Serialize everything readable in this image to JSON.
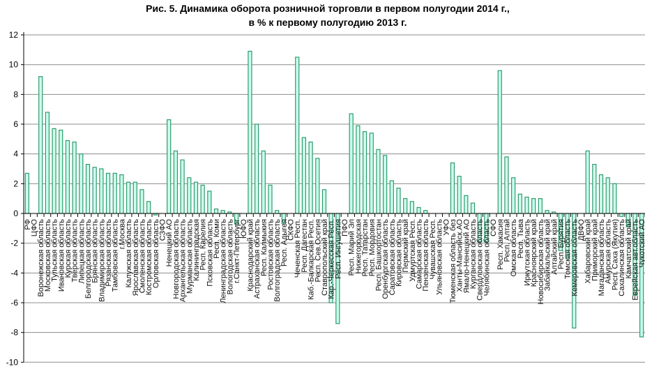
{
  "chart_data": {
    "type": "bar",
    "title": "Рис. 5. Динамика оборота розничной торговли в первом полугодии 2014 г.,",
    "subtitle": "в % к первому полугодию 2013 г.",
    "xlabel": "",
    "ylabel": "",
    "ylim": [
      -10,
      12
    ],
    "yticks": [
      12,
      10,
      8,
      6,
      4,
      2,
      0,
      -2,
      -4,
      -6,
      -8,
      -10
    ],
    "grid": true,
    "colors": {
      "bar_fill": "#ccfff0",
      "bar_stroke": "#2e9a6a",
      "grid": "#8c8c8c"
    },
    "categories": [
      "РФ",
      "ЦФО",
      "Воронежская область",
      "Московская область",
      "Тульская область",
      "Ивановская область",
      "Курская область",
      "Тверская область",
      "Липецкая область",
      "Белгородская область",
      "Брянская область",
      "Владимирская область",
      "Рязанская область",
      "Тамбовская область",
      "г.Москва",
      "Калужская область",
      "Ярославская область",
      "Смоленская область",
      "Костромская область",
      "Орловская область",
      "СЗФО",
      "Ненецкий АО",
      "Новгородская область",
      "Архангельская область",
      "Мурманская область",
      "Калининградская",
      "Респ. Карелия",
      "Псковская область",
      "Респ. Коми",
      "Ленинградская область",
      "Вологодская область",
      "г.Санкт-Петербург",
      "ЮФО",
      "Краснодарский край",
      "Астраханская область",
      "Респ. Калмыкия",
      "Ростовская область",
      "Волгоградская область",
      "Респ. Адыгея",
      "СКФО",
      "Чеченская Респ.",
      "Респ. Дагестан",
      "Каб.-Балкарская Респ.",
      "Респ. Сев.Осетия",
      "Ставропольский край",
      "Кар.-Черкесская Респ.",
      "Респ. Ингушетия",
      "ПФО",
      "Респ. Марий Эл",
      "Нижегородская",
      "Респ. Татарстан",
      "Респ. Мордовия",
      "Респ. Башкортостан",
      "Оренбургская область",
      "Саратовская область",
      "Кировская область",
      "Пермский край",
      "Удмуртская Респ.",
      "Самарская область",
      "Пензенская область",
      "Чувашская Респ.",
      "Ульяновская область",
      "УФО",
      "Тюменская область без",
      "Ханты-Мансийск.АО",
      "Ямало-Ненецкий АО",
      "Курганская область",
      "Свердловская область",
      "Челябинская область",
      "СФО",
      "Респ. Хакасия",
      "Респ. Алтай",
      "Омская область",
      "Респ. Тыва",
      "Иркутская область",
      "Красноярский край",
      "Новосибирская область",
      "Забайкальский край",
      "Алтайский край",
      "Респ. Бурятия",
      "Томская область",
      "Кемеровская область",
      "ДВФО",
      "Хабаровский край",
      "Приморский край",
      "Магаданская область",
      "Амурская область",
      "Респ. Саха (Якутия)",
      "Сахалинская область",
      "Камчатский край",
      "Еврейская авт.область",
      "Чукотский АО"
    ],
    "values": [
      2.7,
      null,
      9.2,
      6.8,
      5.7,
      5.6,
      4.9,
      4.8,
      4.0,
      3.3,
      3.1,
      3.0,
      2.7,
      2.7,
      2.6,
      2.1,
      2.1,
      1.6,
      0.8,
      -0.1,
      null,
      6.3,
      4.2,
      3.6,
      2.4,
      2.1,
      1.9,
      1.5,
      0.3,
      0.2,
      0.1,
      -0.7,
      null,
      10.9,
      6.0,
      4.2,
      1.9,
      0.2,
      -0.7,
      null,
      10.5,
      5.1,
      4.8,
      3.7,
      1.6,
      -6.0,
      -7.4,
      null,
      6.7,
      5.9,
      5.5,
      5.4,
      4.3,
      3.9,
      2.2,
      1.7,
      1.0,
      0.8,
      0.4,
      0.2,
      0.0,
      0.0,
      null,
      3.4,
      2.5,
      1.2,
      0.7,
      -1.9,
      -1.9,
      null,
      9.6,
      3.8,
      2.4,
      1.3,
      1.1,
      1.0,
      1.0,
      0.2,
      0.1,
      -2.5,
      -3.0,
      -7.7,
      null,
      4.2,
      3.3,
      2.6,
      2.4,
      2.0,
      -0.2,
      -0.9,
      -5.5,
      -8.3
    ]
  }
}
